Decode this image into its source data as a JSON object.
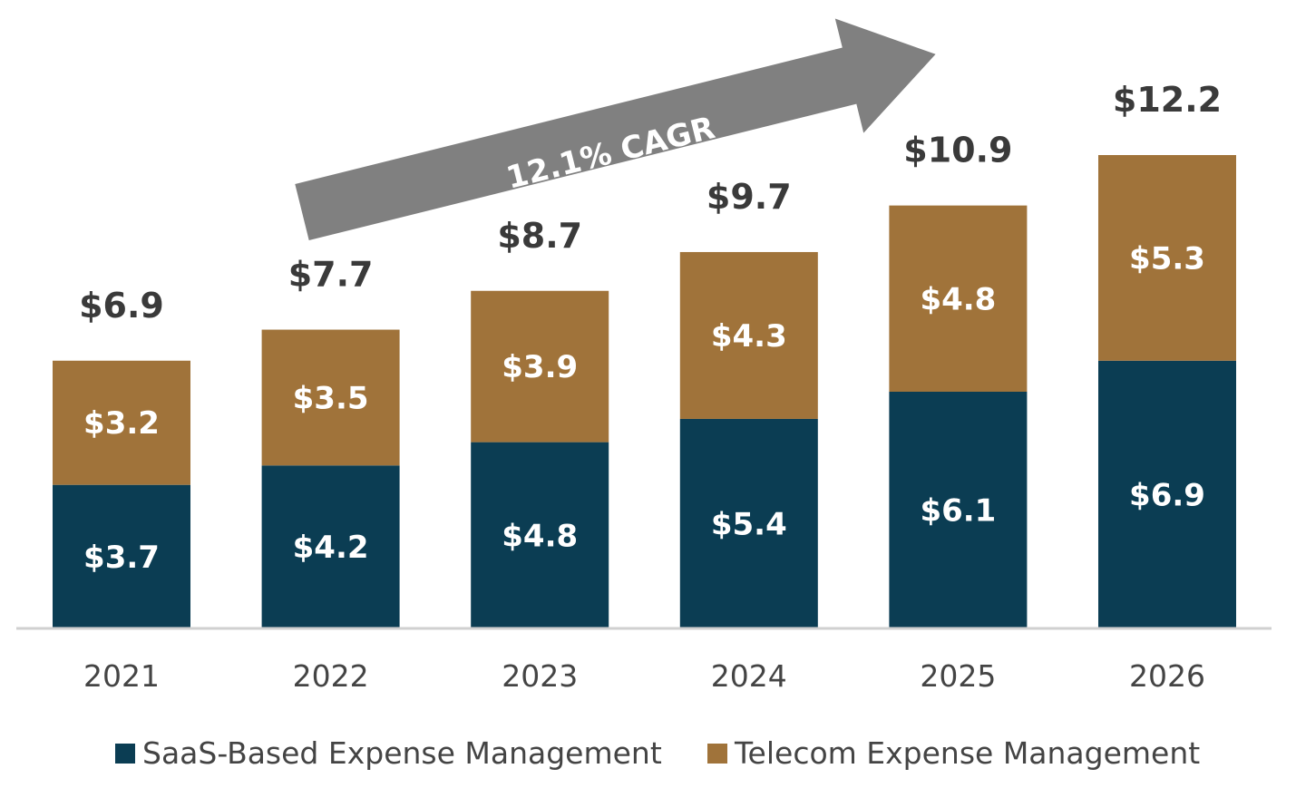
{
  "chart_data": {
    "type": "bar",
    "stacked": true,
    "categories": [
      "2021",
      "2022",
      "2023",
      "2024",
      "2025",
      "2026"
    ],
    "series": [
      {
        "name": "SaaS-Based Expense Management",
        "color": "#0b3d53",
        "values": [
          3.7,
          4.2,
          4.8,
          5.4,
          6.1,
          6.9
        ],
        "labels": [
          "$3.7",
          "$4.2",
          "$4.8",
          "$5.4",
          "$6.1",
          "$6.9"
        ]
      },
      {
        "name": "Telecom Expense Management",
        "color": "#a0733a",
        "values": [
          3.2,
          3.5,
          3.9,
          4.3,
          4.8,
          5.3
        ],
        "labels": [
          "$3.2",
          "$3.5",
          "$3.9",
          "$4.3",
          "$4.8",
          "$5.3"
        ]
      }
    ],
    "totals": [
      6.9,
      7.7,
      8.7,
      9.7,
      10.9,
      12.2
    ],
    "total_labels": [
      "$6.9",
      "$7.7",
      "$8.7",
      "$9.7",
      "$10.9",
      "$12.2"
    ],
    "annotation": {
      "text": "12.1% CAGR",
      "color": "#808080"
    },
    "ylim": [
      0,
      12.2
    ],
    "legend_position": "bottom",
    "grid": false,
    "axis_color": "#d0d0d0"
  }
}
